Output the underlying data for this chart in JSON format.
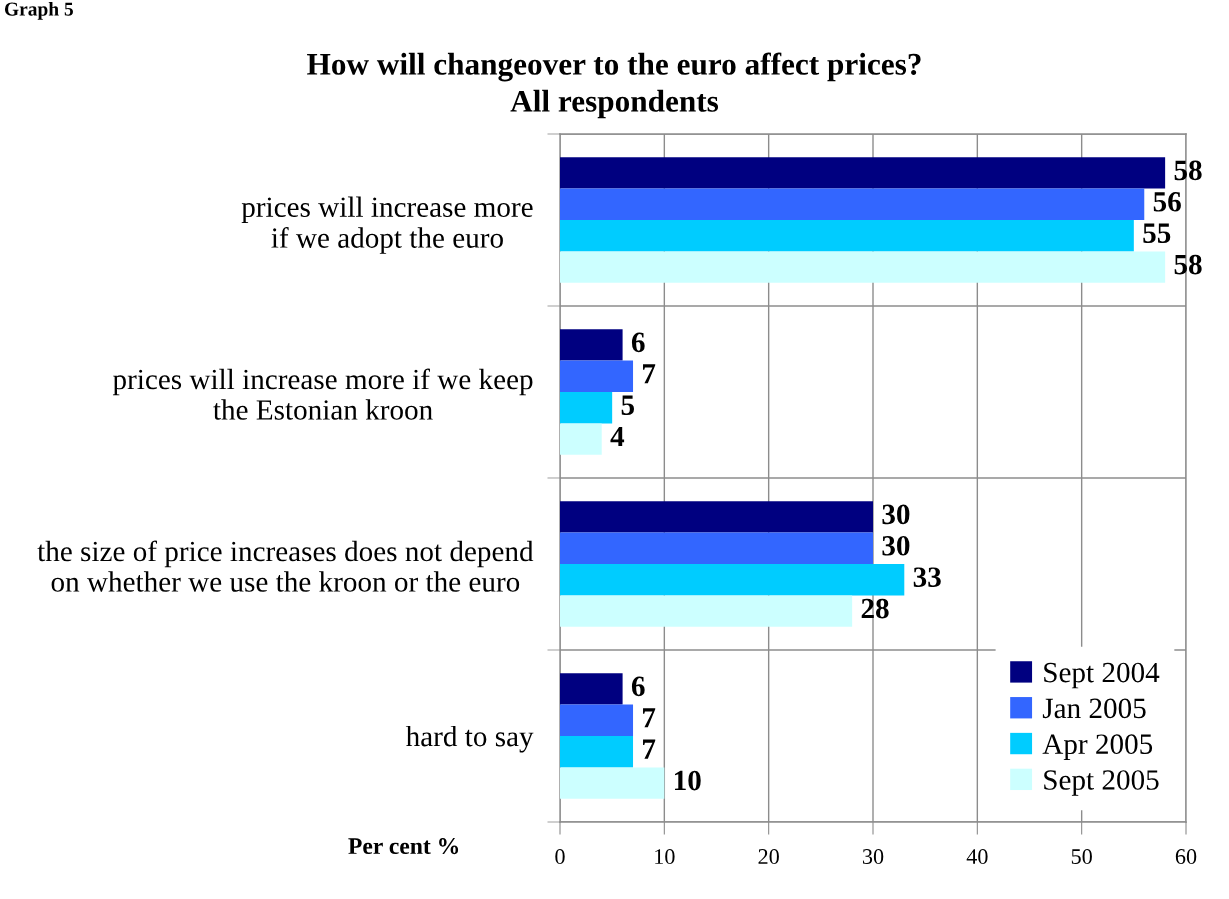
{
  "chart_data": {
    "type": "bar",
    "orientation": "horizontal",
    "title": "How will changeover to the euro affect prices?",
    "subtitle": "All respondents",
    "xlabel": "Per cent %",
    "annotations": [
      "Graph 5"
    ],
    "categories": [
      "prices will increase more\nif we adopt the euro",
      "prices will increase more if we keep\nthe Estonian kroon",
      "the size of price increases does not depend\non whether we use the kroon or the euro",
      "hard to say"
    ],
    "series": [
      {
        "name": "Sept 2004",
        "color": "#000080",
        "values": [
          58,
          6,
          30,
          6
        ]
      },
      {
        "name": "Jan 2005",
        "color": "#3366ff",
        "values": [
          56,
          7,
          30,
          7
        ]
      },
      {
        "name": "Apr 2005",
        "color": "#00ccff",
        "values": [
          55,
          5,
          33,
          7
        ]
      },
      {
        "name": "Sept 2005",
        "color": "#ccffff",
        "values": [
          58,
          4,
          28,
          10
        ]
      }
    ],
    "xlim": [
      0,
      60
    ],
    "xticks": [
      0,
      10,
      20,
      30,
      40,
      50,
      60
    ],
    "grid": true,
    "legend": "bottom right",
    "data_labels": true
  }
}
